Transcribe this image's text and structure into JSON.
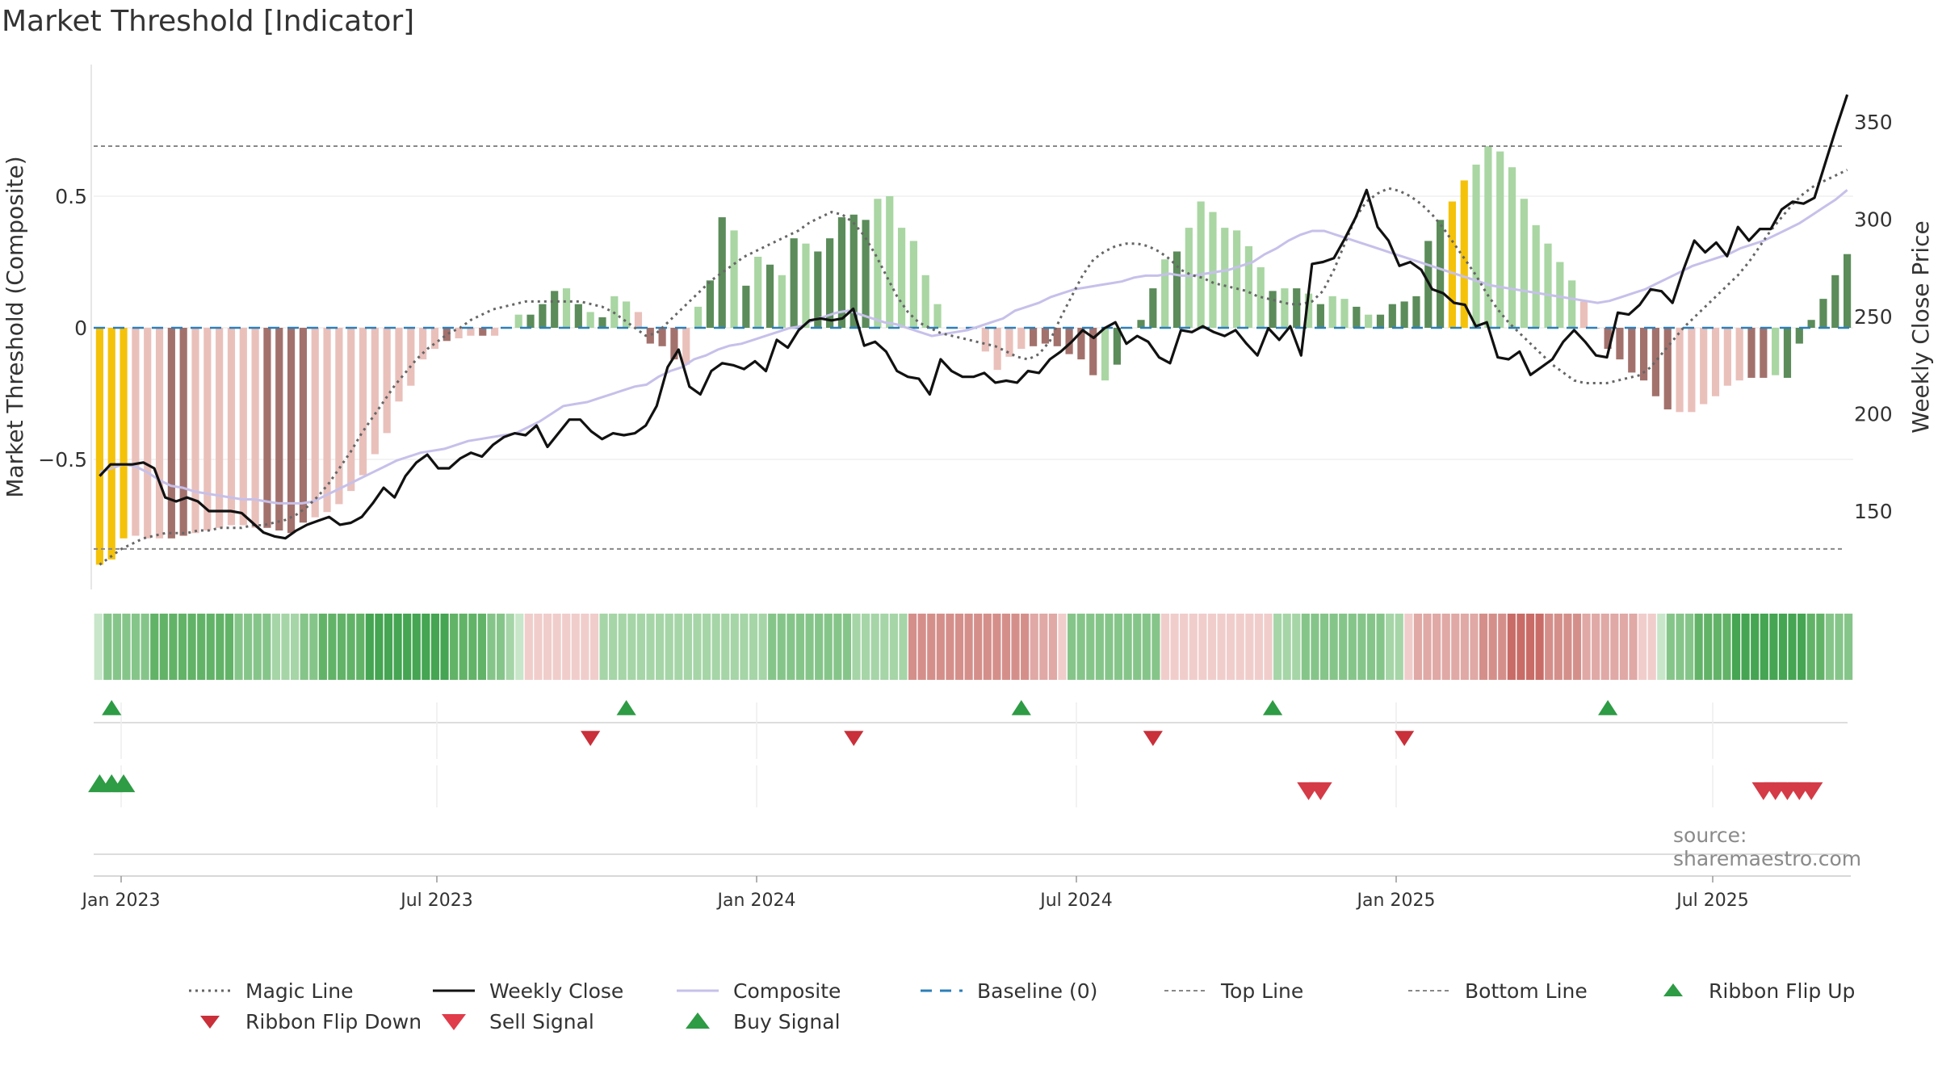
{
  "title": "Market Threshold [Indicator]",
  "source": "source: sharemaestro.com",
  "colors": {
    "grey_bar": "#f5a623",
    "yellow_bar": "#f5c20a",
    "green_dark": "#5b8c5a",
    "green_light": "#a9d6a3",
    "red_dark": "#a3716c",
    "red_light": "#eac0bb",
    "price_line": "#111111",
    "composite": "#c6c0ea",
    "magic": "#666666",
    "baseline": "#2c7fb8",
    "buy": "#2e9b45",
    "sell": "#d43b47",
    "ribbon_up": "#2e9b45",
    "ribbon_down": "#c9303a"
  },
  "chart_data": {
    "type": "bar",
    "title": "Market Threshold [Indicator]",
    "ylabel": "Market Threshold (Composite)",
    "y2label": "Weekly Close Price",
    "ylim": [
      -0.92,
      1.0
    ],
    "y2lim": [
      96,
      380
    ],
    "yticks": [
      0.5,
      0,
      -0.5
    ],
    "ytick_labels": [
      "0.5",
      "0",
      "−0.5"
    ],
    "y2ticks": [
      350,
      300,
      250,
      200,
      150
    ],
    "xticks": [
      "Jan 2023",
      "Jul 2023",
      "Jan 2024",
      "Jul 2024",
      "Jan 2025",
      "Jul 2025"
    ],
    "top_line": 0.69,
    "bottom_line": -0.84,
    "baseline": 0,
    "legend_position": "bottom",
    "weeks": 144,
    "bars": [
      -0.9,
      -0.88,
      -0.8,
      -0.79,
      -0.8,
      -0.8,
      -0.8,
      -0.79,
      -0.78,
      -0.77,
      -0.76,
      -0.75,
      -0.75,
      -0.76,
      -0.76,
      -0.77,
      -0.78,
      -0.74,
      -0.72,
      -0.7,
      -0.67,
      -0.62,
      -0.56,
      -0.48,
      -0.4,
      -0.28,
      -0.22,
      -0.12,
      -0.08,
      -0.05,
      -0.04,
      -0.03,
      -0.03,
      -0.03,
      0,
      0.05,
      0.05,
      0.09,
      0.14,
      0.15,
      0.09,
      0.06,
      0.04,
      0.12,
      0.1,
      0.06,
      -0.06,
      -0.07,
      -0.12,
      -0.14,
      0.08,
      0.18,
      0.42,
      0.37,
      0.16,
      0.27,
      0.24,
      0.2,
      0.34,
      0.32,
      0.29,
      0.34,
      0.42,
      0.43,
      0.41,
      0.49,
      0.5,
      0.38,
      0.33,
      0.2,
      0.09,
      0,
      0,
      0,
      -0.09,
      -0.16,
      -0.11,
      -0.08,
      -0.07,
      -0.06,
      -0.07,
      -0.1,
      -0.12,
      -0.18,
      -0.2,
      -0.14,
      0,
      0.03,
      0.15,
      0.26,
      0.29,
      0.38,
      0.48,
      0.44,
      0.38,
      0.37,
      0.31,
      0.23,
      0.14,
      0.15,
      0.15,
      0.13,
      0.09,
      0.12,
      0.11,
      0.08,
      0.05,
      0.05,
      0.09,
      0.1,
      0.12,
      0.33,
      0.41,
      0.48,
      0.56,
      0.62,
      0.69,
      0.67,
      0.61,
      0.49,
      0.39,
      0.32,
      0.25,
      0.18,
      0.1,
      0,
      -0.08,
      -0.12,
      -0.17,
      -0.2,
      -0.26,
      -0.31,
      -0.32,
      -0.32,
      -0.29,
      -0.26,
      -0.22,
      -0.2,
      -0.19,
      -0.19,
      -0.18,
      -0.19,
      -0.06,
      0.03,
      0.11,
      0.2,
      0.28
    ],
    "bar_category": [
      "y",
      "y",
      "y",
      "r2",
      "r2",
      "r2",
      "r1",
      "r1",
      "r2",
      "r2",
      "r2",
      "r2",
      "r2",
      "r2",
      "r1",
      "r1",
      "r1",
      "r1",
      "r2",
      "r2",
      "r2",
      "r2",
      "r2",
      "r2",
      "r2",
      "r2",
      "r2",
      "r2",
      "r2",
      "r1",
      "r2",
      "r2",
      "r1",
      "r2",
      "g2",
      "g2",
      "g1",
      "g1",
      "g1",
      "g2",
      "g1",
      "g2",
      "g1",
      "g2",
      "g2",
      "r2",
      "r1",
      "r1",
      "r1",
      "r2",
      "g2",
      "g1",
      "g1",
      "g2",
      "g1",
      "g2",
      "g1",
      "g2",
      "g1",
      "g2",
      "g1",
      "g1",
      "g1",
      "g1",
      "g1",
      "g2",
      "g2",
      "g2",
      "g2",
      "g2",
      "g2",
      "r2",
      "r2",
      "r1",
      "r2",
      "r2",
      "r2",
      "r2",
      "r1",
      "r1",
      "r1",
      "r1",
      "r1",
      "r1",
      "g2",
      "g1",
      "g1",
      "g1",
      "g1",
      "g2",
      "g1",
      "g2",
      "g2",
      "g2",
      "g2",
      "g2",
      "g2",
      "g2",
      "g1",
      "g2",
      "g1",
      "g2",
      "g1",
      "g2",
      "g2",
      "g1",
      "g2",
      "g1",
      "g1",
      "g1",
      "g1",
      "g1",
      "g1",
      "y",
      "y",
      "g2",
      "g2",
      "g2",
      "g2",
      "g2",
      "g2",
      "g2",
      "g2",
      "g2",
      "r2",
      "r1",
      "r1",
      "r1",
      "r1",
      "r1",
      "r1",
      "r1",
      "r2",
      "r2",
      "r2",
      "r2",
      "r2",
      "r2",
      "r1",
      "r1",
      "g2",
      "g1",
      "g1",
      "g1",
      "g1",
      "g1",
      "g1",
      "g1",
      "g1",
      "g1",
      "g1",
      "y",
      "y",
      "y",
      "y",
      "y"
    ],
    "weekly_close": [
      168,
      174,
      174,
      174,
      175,
      172,
      157,
      155,
      157,
      155,
      150,
      150,
      150,
      149,
      144,
      139,
      137,
      136,
      140,
      143,
      145,
      147,
      143,
      144,
      147,
      154,
      162,
      157,
      168,
      175,
      179,
      172,
      172,
      177,
      180,
      178,
      184,
      188,
      190,
      189,
      194,
      183,
      190,
      197,
      197,
      191,
      187,
      190,
      189,
      190,
      194,
      204,
      224,
      233,
      214,
      210,
      222,
      226,
      225,
      223,
      227,
      222,
      238,
      234,
      243,
      248,
      249,
      248,
      249,
      254,
      235,
      237,
      232,
      222,
      219,
      218,
      210,
      228,
      222,
      219,
      219,
      221,
      216,
      217,
      216,
      222,
      221,
      228,
      232,
      237,
      243,
      239,
      244,
      247,
      236,
      240,
      237,
      229,
      226,
      243,
      242,
      245,
      242,
      240,
      243,
      236,
      230,
      244,
      238,
      245,
      230,
      277,
      278,
      280,
      290,
      301,
      315,
      296,
      289,
      276,
      278,
      274,
      264,
      262,
      257,
      256,
      245,
      247,
      229,
      228,
      232,
      220,
      224,
      228,
      237,
      243,
      237,
      230,
      229,
      252,
      251,
      256,
      264,
      263,
      257,
      274,
      289,
      283,
      288,
      281,
      296,
      289,
      295,
      295,
      305,
      309,
      308,
      311,
      329,
      347,
      364
    ],
    "composite_series": [
      170,
      172,
      174,
      173,
      170,
      166,
      163,
      162,
      160,
      159,
      158,
      157,
      156,
      156,
      155,
      154,
      154,
      154,
      155,
      158,
      161,
      164,
      167,
      170,
      173,
      176,
      178,
      180,
      181,
      182,
      184,
      186,
      187,
      188,
      189,
      190,
      193,
      196,
      200,
      204,
      205,
      206,
      208,
      210,
      212,
      214,
      215,
      219,
      222,
      224,
      228,
      230,
      233,
      235,
      236,
      238,
      240,
      242,
      244,
      245,
      248,
      250,
      252,
      253,
      251,
      249,
      247,
      246,
      244,
      242,
      240,
      241,
      242,
      243,
      245,
      247,
      249,
      253,
      255,
      257,
      260,
      262,
      264,
      265,
      266,
      267,
      268,
      270,
      271,
      271,
      272,
      271,
      271,
      272,
      273,
      274,
      276,
      278,
      282,
      285,
      289,
      292,
      294,
      294,
      292,
      290,
      288,
      286,
      284,
      282,
      280,
      278,
      276,
      274,
      272,
      270,
      268,
      266,
      265,
      264,
      263,
      262,
      261,
      260,
      259,
      258,
      257,
      258,
      260,
      262,
      264,
      267,
      270,
      273,
      276,
      278,
      280,
      282,
      285,
      287,
      289,
      292,
      295,
      298,
      302,
      306,
      310,
      315
    ],
    "magic_line": [
      -0.9,
      -0.87,
      -0.84,
      -0.82,
      -0.8,
      -0.79,
      -0.78,
      -0.78,
      -0.78,
      -0.77,
      -0.77,
      -0.76,
      -0.76,
      -0.76,
      -0.75,
      -0.75,
      -0.74,
      -0.73,
      -0.71,
      -0.68,
      -0.64,
      -0.59,
      -0.53,
      -0.47,
      -0.4,
      -0.34,
      -0.28,
      -0.22,
      -0.17,
      -0.12,
      -0.08,
      -0.05,
      -0.02,
      0,
      0.03,
      0.05,
      0.07,
      0.08,
      0.09,
      0.1,
      0.1,
      0.1,
      0.1,
      0.1,
      0.1,
      0.09,
      0.08,
      0.06,
      0.03,
      0,
      -0.03,
      -0.02,
      0.02,
      0.06,
      0.1,
      0.14,
      0.18,
      0.21,
      0.24,
      0.27,
      0.29,
      0.31,
      0.33,
      0.35,
      0.37,
      0.4,
      0.42,
      0.44,
      0.43,
      0.4,
      0.35,
      0.28,
      0.2,
      0.12,
      0.06,
      0.02,
      0,
      -0.02,
      -0.03,
      -0.04,
      -0.05,
      -0.06,
      -0.07,
      -0.09,
      -0.11,
      -0.12,
      -0.1,
      -0.05,
      0.04,
      0.12,
      0.2,
      0.26,
      0.29,
      0.31,
      0.32,
      0.32,
      0.31,
      0.29,
      0.26,
      0.22,
      0.2,
      0.19,
      0.17,
      0.16,
      0.15,
      0.14,
      0.12,
      0.11,
      0.1,
      0.09,
      0.09,
      0.1,
      0.14,
      0.22,
      0.32,
      0.42,
      0.48,
      0.51,
      0.53,
      0.52,
      0.5,
      0.47,
      0.43,
      0.38,
      0.32,
      0.26,
      0.2,
      0.13,
      0.07,
      0.02,
      -0.02,
      -0.06,
      -0.1,
      -0.14,
      -0.17,
      -0.2,
      -0.21,
      -0.21,
      -0.21,
      -0.2,
      -0.19,
      -0.18,
      -0.15,
      -0.1,
      -0.05,
      0,
      0.04,
      0.08,
      0.12,
      0.16,
      0.2,
      0.25,
      0.31,
      0.37,
      0.42,
      0.47,
      0.51,
      0.54,
      0.56,
      0.58,
      0.6
    ],
    "ribbon_cells": [
      1,
      3,
      3,
      3,
      3,
      3,
      4,
      4,
      4,
      4,
      4,
      4,
      4,
      4,
      4,
      3,
      3,
      3,
      3,
      2,
      2,
      2,
      3,
      3,
      4,
      4,
      4,
      4,
      4,
      5,
      5,
      5,
      5,
      5,
      5,
      5,
      5,
      5,
      4,
      4,
      4,
      4,
      3,
      3,
      2,
      1,
      -1,
      -1,
      -1,
      -1,
      -1,
      -1,
      -1,
      -1,
      2,
      2,
      2,
      2,
      2,
      2,
      2,
      2,
      2,
      2,
      2,
      2,
      2,
      2,
      2,
      2,
      2,
      2,
      3,
      3,
      3,
      3,
      3,
      3,
      3,
      3,
      3,
      2,
      2,
      2,
      2,
      2,
      2,
      -3,
      -3,
      -3,
      -3,
      -3,
      -3,
      -3,
      -3,
      -3,
      -3,
      -3,
      -3,
      -3,
      -2,
      -2,
      -2,
      -1,
      3,
      3,
      3,
      3,
      3,
      3,
      3,
      3,
      3,
      3,
      -1,
      -1,
      -1,
      -1,
      -1,
      -1,
      -1,
      -1,
      -1,
      -1,
      -1,
      -1,
      2,
      2,
      2,
      3,
      3,
      3,
      3,
      3,
      3,
      3,
      3,
      3,
      2,
      2,
      -1,
      -2,
      -2,
      -2,
      -2,
      -2,
      -2,
      -2,
      -3,
      -3,
      -3,
      -4,
      -4,
      -4,
      -4,
      -3,
      -3,
      -3,
      -3,
      -2,
      -2,
      -2,
      -2,
      -2,
      -2,
      -1,
      -1,
      1,
      3,
      3,
      3,
      4,
      4,
      4,
      4,
      5,
      5,
      5,
      5,
      5,
      5,
      5,
      5,
      4,
      4,
      3,
      3,
      3
    ],
    "ribbon_flip_up_weeks": [
      1,
      44,
      77,
      98,
      126
    ],
    "ribbon_flip_down_weeks": [
      41,
      63,
      88,
      109
    ],
    "buy_signal_weeks": [
      0,
      1,
      2
    ],
    "sell_signal_weeks": [
      101,
      102,
      139,
      140,
      141,
      142,
      143
    ]
  },
  "legend": [
    {
      "label": "Magic Line",
      "style": "dotted-grey"
    },
    {
      "label": "Weekly Close",
      "style": "solid-black"
    },
    {
      "label": "Composite",
      "style": "solid-lavender"
    },
    {
      "label": "Baseline (0)",
      "style": "dashed-blue"
    },
    {
      "label": "Top Line",
      "style": "dashed-grey"
    },
    {
      "label": "Bottom Line",
      "style": "dashed-grey"
    },
    {
      "label": "Ribbon Flip Up",
      "style": "triangle-up-green"
    },
    {
      "label": "Ribbon Flip Down",
      "style": "triangle-down-red"
    },
    {
      "label": "Sell Signal",
      "style": "triangle-down-red-large"
    },
    {
      "label": "Buy Signal",
      "style": "triangle-up-green-large"
    }
  ]
}
